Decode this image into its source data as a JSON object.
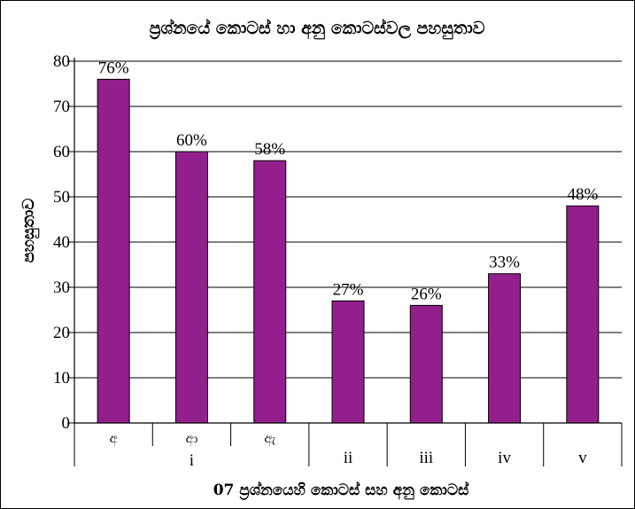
{
  "chart_data": {
    "type": "bar",
    "title": "ප්‍රශ්නයේ කොටස් හා අනු කොටස්වල පහසුතාව",
    "xlabel": "07 ප්‍රශ්නයෙහි කොටස් සහ අනු කොටස්",
    "ylabel": "පහසුතාව",
    "ylim": [
      0,
      80
    ],
    "yticks": [
      0,
      10,
      20,
      30,
      40,
      50,
      60,
      70,
      80
    ],
    "grid": true,
    "categories": [
      "අ",
      "ආ",
      "ඇ",
      "",
      "",
      "",
      ""
    ],
    "groups": [
      "i",
      "i",
      "i",
      "ii",
      "iii",
      "iv",
      "v"
    ],
    "group_labels": [
      "i",
      "ii",
      "iii",
      "iv",
      "v"
    ],
    "values": [
      76,
      60,
      58,
      27,
      26,
      33,
      48
    ],
    "data_labels": [
      "76%",
      "60%",
      "58%",
      "27%",
      "26%",
      "33%",
      "48%"
    ],
    "bar_color": "#931f8c"
  }
}
